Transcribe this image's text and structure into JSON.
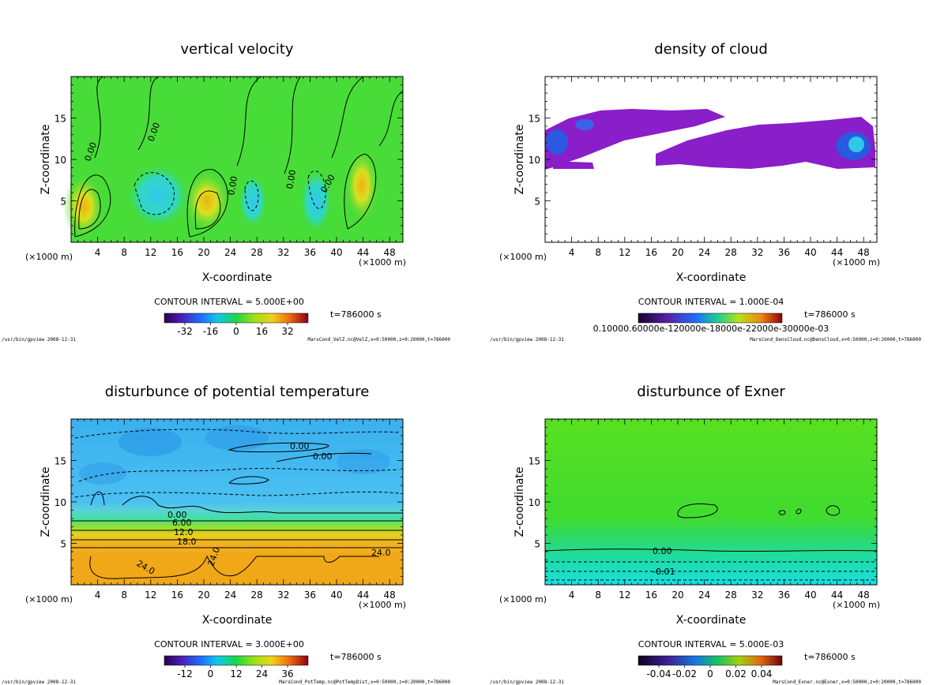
{
  "chart_data": [
    {
      "type": "heatmap",
      "title": "vertical velocity",
      "xlabel": "X-coordinate",
      "ylabel": "Z-coordinate",
      "x_unit": "(×1000 m)",
      "xlim": [
        0,
        50
      ],
      "ylim": [
        0,
        20
      ],
      "xticks": [
        4,
        8,
        12,
        16,
        20,
        24,
        28,
        32,
        36,
        40,
        44,
        48
      ],
      "yticks": [
        5,
        10,
        15
      ],
      "contour_interval": "CONTOUR INTERVAL = 5.000E+00",
      "colorbar_ticks": [
        -32,
        -16,
        0,
        16,
        32
      ],
      "colorbar_tick_labels": [
        "-32",
        "-16",
        "0",
        "16",
        "32"
      ],
      "time": "t=786000 s",
      "contour_labels": [
        "0.00",
        "0.00",
        "0.00",
        "0.00",
        "0.00"
      ],
      "footer_left": "/usr/bin/gpview  2008-12-31",
      "footer_right": "MarsCond_VelZ.nc@VelZ,x=0:50000,z=0:20000,t=786000"
    },
    {
      "type": "heatmap",
      "title": "density of cloud",
      "xlabel": "X-coordinate",
      "ylabel": "Z-coordinate",
      "x_unit": "(×1000 m)",
      "xlim": [
        0,
        50
      ],
      "ylim": [
        0,
        20
      ],
      "xticks": [
        4,
        8,
        12,
        16,
        20,
        24,
        28,
        32,
        36,
        40,
        44,
        48
      ],
      "yticks": [
        5,
        10,
        15
      ],
      "contour_interval": "CONTOUR INTERVAL = 1.000E-04",
      "colorbar_tick_text": "0.10000.60000e-120000e-18000e-22000e-30000e-03",
      "time": "t=786000 s",
      "footer_left": "/usr/bin/gpview  2008-12-31",
      "footer_right": "MarsCond_DensCloud.nc@DensCloud,x=0:50000,z=0:20000,t=786000"
    },
    {
      "type": "heatmap",
      "title": "disturbunce of potential temperature",
      "xlabel": "X-coordinate",
      "ylabel": "Z-coordinate",
      "x_unit": "(×1000 m)",
      "xlim": [
        0,
        50
      ],
      "ylim": [
        0,
        20
      ],
      "xticks": [
        4,
        8,
        12,
        16,
        20,
        24,
        28,
        32,
        36,
        40,
        44,
        48
      ],
      "yticks": [
        5,
        10,
        15
      ],
      "contour_interval": "CONTOUR INTERVAL = 3.000E+00",
      "colorbar_ticks": [
        -12,
        0,
        12,
        24,
        36
      ],
      "colorbar_tick_labels": [
        "-12",
        "0",
        "12",
        "24",
        "36"
      ],
      "time": "t=786000 s",
      "contour_labels": [
        "0.00",
        "0.00",
        "0.00",
        "6.00",
        "12.0",
        "18.0",
        "24.0",
        "24.0",
        "24.0"
      ],
      "footer_left": "/usr/bin/gpview  2008-12-31",
      "footer_right": "MarsCond_PotTemp.nc@PotTempDist,x=0:50000,z=0:20000,t=786000"
    },
    {
      "type": "heatmap",
      "title": "disturbunce of Exner",
      "xlabel": "X-coordinate",
      "ylabel": "Z-coordinate",
      "x_unit": "(×1000 m)",
      "xlim": [
        0,
        50
      ],
      "ylim": [
        0,
        20
      ],
      "xticks": [
        4,
        8,
        12,
        16,
        20,
        24,
        28,
        32,
        36,
        40,
        44,
        48
      ],
      "yticks": [
        5,
        10,
        15
      ],
      "contour_interval": "CONTOUR INTERVAL = 5.000E-03",
      "colorbar_ticks": [
        -0.04,
        -0.02,
        0,
        0.02,
        0.04
      ],
      "colorbar_tick_labels": [
        "-0.04",
        "-0.02",
        "0",
        "0.02",
        "0.04"
      ],
      "time": "t=786000 s",
      "contour_labels": [
        "0.00",
        "-0.01"
      ],
      "footer_left": "/usr/bin/gpview  2008-12-31",
      "footer_right": "MarsCond_Exner.nc@Exner,x=0:50000,z=0:20000,t=786000"
    }
  ]
}
